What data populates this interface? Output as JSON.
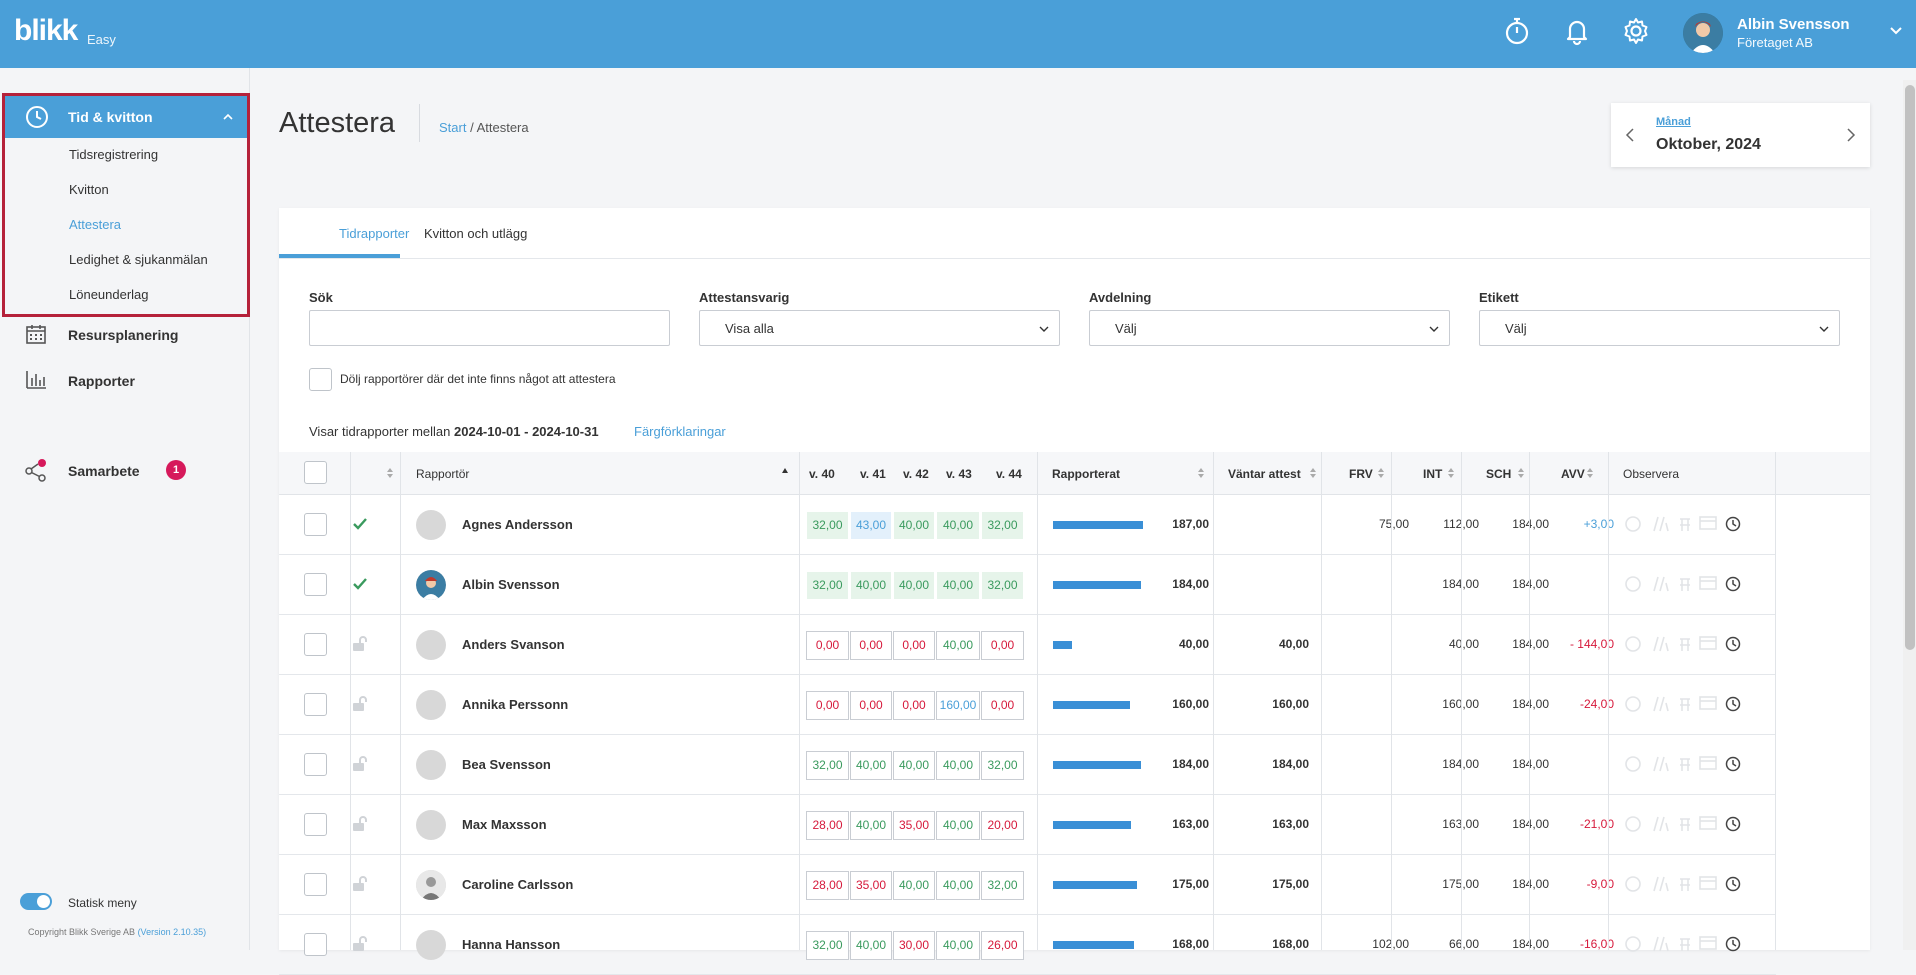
{
  "topbar": {
    "logo": "blikk",
    "logo_sub": "Easy",
    "user_name": "Albin Svensson",
    "user_company": "Företaget AB"
  },
  "sidebar": {
    "section_label": "Tid & kvitton",
    "sub_items": [
      "Tidsregistrering",
      "Kvitton",
      "Attestera",
      "Ledighet & sjukanmälan",
      "Löneunderlag"
    ],
    "items": [
      {
        "label": "Resursplanering"
      },
      {
        "label": "Rapporter"
      },
      {
        "label": "Samarbete",
        "badge": "1"
      }
    ],
    "toggle_label": "Statisk meny",
    "copyright": "Copyright Blikk Sverige AB",
    "version": "(Version 2.10.35)"
  },
  "page": {
    "title": "Attestera",
    "breadcrumb_start": "Start",
    "breadcrumb_sep": " / ",
    "breadcrumb_current": "Attestera"
  },
  "period": {
    "label": "Månad",
    "value": "Oktober, 2024"
  },
  "tabs": [
    "Tidrapporter",
    "Kvitton och utlägg"
  ],
  "filters": {
    "search_label": "Sök",
    "attest_label": "Attestansvarig",
    "attest_value": "Visa alla",
    "dept_label": "Avdelning",
    "dept_value": "Välj",
    "tag_label": "Etikett",
    "tag_value": "Välj",
    "hide_label": "Dölj rapportörer där det inte finns något att attestera"
  },
  "range": {
    "prefix": "Visar tidrapporter mellan",
    "dates": "2024-10-01 - 2024-10-31",
    "legend_link": "Färgförklaringar"
  },
  "table": {
    "headers": {
      "reporter": "Rapportör",
      "w40": "v. 40",
      "w41": "v. 41",
      "w42": "v. 42",
      "w43": "v. 43",
      "w44": "v. 44",
      "reported": "Rapporterat",
      "pending": "Väntar attest",
      "frv": "FRV",
      "int": "INT",
      "sch": "SCH",
      "avv": "AVV",
      "observe": "Observera"
    },
    "rows": [
      {
        "name": "Agnes Andersson",
        "status": "approved",
        "weeks": [
          "32,00",
          "43,00",
          "40,00",
          "40,00",
          "32,00"
        ],
        "wk_style": [
          "g",
          "b",
          "g",
          "g",
          "g"
        ],
        "bar_fraction": 0.975,
        "reported": "187,00",
        "pending": "",
        "frv": "75,00",
        "int": "112,00",
        "sch": "184,00",
        "avv": "+3,00",
        "avv_type": "pos"
      },
      {
        "name": "Albin Svensson",
        "status": "approved",
        "weeks": [
          "32,00",
          "40,00",
          "40,00",
          "40,00",
          "32,00"
        ],
        "wk_style": [
          "g",
          "g",
          "g",
          "g",
          "g"
        ],
        "bar_fraction": 0.96,
        "reported": "184,00",
        "pending": "",
        "frv": "",
        "int": "184,00",
        "sch": "184,00",
        "avv": "",
        "avv_type": ""
      },
      {
        "name": "Anders Svanson",
        "status": "open",
        "weeks": [
          "0,00",
          "0,00",
          "0,00",
          "40,00",
          "0,00"
        ],
        "wk_style": [
          "r",
          "r",
          "r",
          "gw",
          "r"
        ],
        "bar_fraction": 0.21,
        "reported": "40,00",
        "pending": "40,00",
        "frv": "",
        "int": "40,00",
        "sch": "184,00",
        "avv": "- 144,00",
        "avv_type": "neg"
      },
      {
        "name": "Annika Perssonn",
        "status": "open",
        "weeks": [
          "0,00",
          "0,00",
          "0,00",
          "160,00",
          "0,00"
        ],
        "wk_style": [
          "r",
          "r",
          "r",
          "bw",
          "r"
        ],
        "bar_fraction": 0.835,
        "reported": "160,00",
        "pending": "160,00",
        "frv": "",
        "int": "160,00",
        "sch": "184,00",
        "avv": "-24,00",
        "avv_type": "neg"
      },
      {
        "name": "Bea Svensson",
        "status": "open",
        "weeks": [
          "32,00",
          "40,00",
          "40,00",
          "40,00",
          "32,00"
        ],
        "wk_style": [
          "gw",
          "gw",
          "gw",
          "gw",
          "gw"
        ],
        "bar_fraction": 0.96,
        "reported": "184,00",
        "pending": "184,00",
        "frv": "",
        "int": "184,00",
        "sch": "184,00",
        "avv": "",
        "avv_type": ""
      },
      {
        "name": "Max Maxsson",
        "status": "open",
        "weeks": [
          "28,00",
          "40,00",
          "35,00",
          "40,00",
          "20,00"
        ],
        "wk_style": [
          "r",
          "gw",
          "r",
          "gw",
          "r"
        ],
        "bar_fraction": 0.85,
        "reported": "163,00",
        "pending": "163,00",
        "frv": "",
        "int": "163,00",
        "sch": "184,00",
        "avv": "-21,00",
        "avv_type": "neg"
      },
      {
        "name": "Caroline Carlsson",
        "status": "open",
        "weeks": [
          "28,00",
          "35,00",
          "40,00",
          "40,00",
          "32,00"
        ],
        "wk_style": [
          "r",
          "r",
          "gw",
          "gw",
          "gw"
        ],
        "bar_fraction": 0.915,
        "reported": "175,00",
        "pending": "175,00",
        "frv": "",
        "int": "175,00",
        "sch": "184,00",
        "avv": "-9,00",
        "avv_type": "neg"
      },
      {
        "name": "Hanna Hansson",
        "status": "open",
        "weeks": [
          "32,00",
          "40,00",
          "30,00",
          "40,00",
          "26,00"
        ],
        "wk_style": [
          "gw",
          "gw",
          "r",
          "gw",
          "r"
        ],
        "bar_fraction": 0.875,
        "reported": "168,00",
        "pending": "168,00",
        "frv": "102,00",
        "int": "66,00",
        "sch": "184,00",
        "avv": "-16,00",
        "avv_type": "neg"
      }
    ]
  }
}
